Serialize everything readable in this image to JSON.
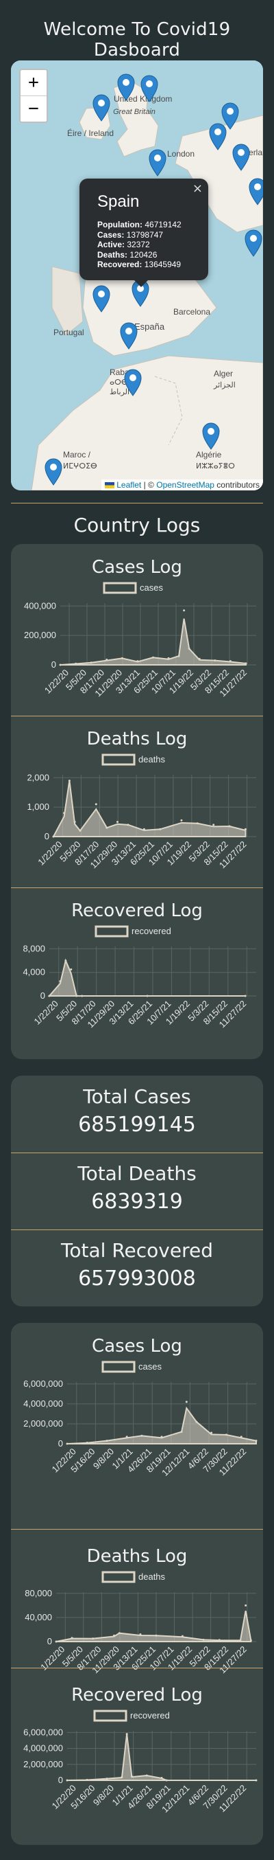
{
  "page": {
    "title": "Welcome To Covid19 Dasboard"
  },
  "map": {
    "zoom_in": "+",
    "zoom_out": "−",
    "labels": [
      "Éire / Ireland",
      "United Kingdom",
      "Great Britain",
      "London",
      "Nederland",
      "Portugal",
      "España",
      "Barcelona",
      "Rabat",
      "ⴰⵔⴱⴰⵟ",
      "الرباط",
      "Alger",
      "الجزائر",
      "Maroc /",
      "ⵍⵎⵖⵔⵉⴱ",
      "Algérie",
      "ⵍⵣⵣⴰⵢⴻⵔ"
    ],
    "popup": {
      "close": "×",
      "country": "Spain",
      "population_label": "Population:",
      "population": "46719142",
      "cases_label": "Cases:",
      "cases": "13798747",
      "active_label": "Active:",
      "active": "32372",
      "deaths_label": "Deaths:",
      "deaths": "120426",
      "recovered_label": "Recovered:",
      "recovered": "13645949"
    },
    "attribution": {
      "leaflet": "Leaflet",
      "sep": "| ©",
      "osm": "OpenStreetMap",
      "tail": "contributors"
    }
  },
  "country_logs_heading": "Country Logs",
  "totals": {
    "cases_label": "Total Cases",
    "cases": "685199145",
    "deaths_label": "Total Deaths",
    "deaths": "6839319",
    "recovered_label": "Total Recovered",
    "recovered": "657993008"
  },
  "colors": {
    "bg": "#263133",
    "card": "#3c4846",
    "accent": "#c8a36c",
    "series": "#ddd6c6"
  },
  "chart_data": [
    {
      "type": "area",
      "title": "Cases Log",
      "legend": "cases",
      "ticks_x": [
        "1/22/20",
        "5/5/20",
        "8/17/20",
        "11/29/20",
        "3/13/21",
        "6/25/21",
        "10/7/21",
        "1/19/22",
        "5/3/22",
        "8/15/22",
        "11/27/22"
      ],
      "ticks_y": [
        "0",
        "200,000",
        "400,000"
      ],
      "ylim": [
        0,
        420000
      ],
      "x": [
        "2020-01",
        "2020-04",
        "2020-07",
        "2020-10",
        "2021-01",
        "2021-04",
        "2021-07",
        "2021-10",
        "2021-12",
        "2022-01",
        "2022-02",
        "2022-04",
        "2022-07",
        "2022-10",
        "2023-01"
      ],
      "values": [
        0,
        8000,
        15000,
        35000,
        45000,
        25000,
        50000,
        45000,
        60000,
        370000,
        110000,
        40000,
        30000,
        25000,
        10000
      ]
    },
    {
      "type": "area",
      "title": "Deaths Log",
      "legend": "deaths",
      "ticks_x": [
        "1/22/20",
        "5/5/20",
        "8/17/20",
        "11/29/20",
        "3/13/21",
        "6/25/21",
        "10/7/21",
        "1/19/22",
        "5/3/22",
        "8/15/22",
        "11/27/22"
      ],
      "ticks_y": [
        "0",
        "1,000",
        "2,000"
      ],
      "ylim": [
        0,
        2100
      ],
      "x": [
        "2020-01",
        "2020-03",
        "2020-04",
        "2020-05",
        "2020-06",
        "2020-09",
        "2020-11",
        "2021-01",
        "2021-03",
        "2021-06",
        "2021-09",
        "2022-01",
        "2022-04",
        "2022-07",
        "2022-10",
        "2023-01"
      ],
      "values": [
        0,
        800,
        1900,
        500,
        200,
        1100,
        300,
        500,
        400,
        250,
        250,
        550,
        450,
        400,
        350,
        250
      ]
    },
    {
      "type": "area",
      "title": "Recovered Log",
      "legend": "recovered",
      "ticks_x": [
        "1/22/20",
        "5/5/20",
        "8/17/20",
        "11/29/20",
        "3/13/21",
        "6/25/21",
        "10/7/21",
        "1/19/22",
        "5/3/22",
        "8/15/22",
        "11/27/22"
      ],
      "ticks_y": [
        "0",
        "4,000",
        "8,000"
      ],
      "ylim": [
        0,
        8400
      ],
      "x": [
        "2020-01",
        "2020-03",
        "2020-04",
        "2020-05",
        "2020-06",
        "2020-07",
        "2021-07",
        "2023-01"
      ],
      "values": [
        0,
        2500,
        6000,
        4500,
        0,
        0,
        0,
        0
      ]
    },
    {
      "type": "area",
      "title": "Cases Log",
      "legend": "cases",
      "ticks_x": [
        "1/22/20",
        "5/16/20",
        "9/8/20",
        "1/1/21",
        "4/26/21",
        "8/19/21",
        "12/12/21",
        "4/6/22",
        "7/30/22",
        "11/22/22"
      ],
      "ticks_y": [
        "0",
        "2,000,000",
        "4,000,000",
        "6,000,000"
      ],
      "ylim": [
        0,
        6200000
      ],
      "x": [
        "2020-01",
        "2020-05",
        "2020-09",
        "2021-01",
        "2021-04",
        "2021-08",
        "2021-12",
        "2022-01",
        "2022-03",
        "2022-06",
        "2022-09",
        "2022-12",
        "2023-03"
      ],
      "values": [
        0,
        100000,
        300000,
        700000,
        800000,
        700000,
        1200000,
        4200000,
        2200000,
        1100000,
        900000,
        700000,
        300000
      ]
    },
    {
      "type": "area",
      "title": "Deaths Log",
      "legend": "deaths",
      "ticks_x": [
        "1/22/20",
        "5/5/20",
        "8/17/20",
        "11/29/20",
        "3/13/21",
        "6/25/21",
        "10/7/21",
        "1/19/22",
        "5/3/22",
        "8/15/22",
        "11/27/22"
      ],
      "ticks_y": [
        "0",
        "40,000",
        "80,000"
      ],
      "ylim": [
        0,
        82000
      ],
      "x": [
        "2020-01",
        "2020-04",
        "2020-08",
        "2020-12",
        "2021-01",
        "2021-05",
        "2021-08",
        "2022-01",
        "2022-05",
        "2022-08",
        "2022-12",
        "2023-01",
        "2023-02"
      ],
      "values": [
        0,
        6000,
        5000,
        10000,
        14000,
        12000,
        10000,
        9000,
        3000,
        2500,
        2000,
        60000,
        2000
      ]
    },
    {
      "type": "area",
      "title": "Recovered Log",
      "legend": "recovered",
      "ticks_x": [
        "1/22/20",
        "5/16/20",
        "9/8/20",
        "1/1/21",
        "4/26/21",
        "8/19/21",
        "12/12/21",
        "4/6/22",
        "7/30/22",
        "11/22/22"
      ],
      "ticks_y": [
        "0",
        "2,000,000",
        "4,000,000",
        "6,000,000"
      ],
      "ylim": [
        0,
        6200000
      ],
      "x": [
        "2020-01",
        "2020-05",
        "2020-09",
        "2020-12",
        "2021-01",
        "2021-02",
        "2021-05",
        "2021-08",
        "2021-09",
        "2023-03"
      ],
      "values": [
        0,
        50000,
        200000,
        400000,
        5800000,
        500000,
        600000,
        300000,
        0,
        0
      ]
    }
  ]
}
